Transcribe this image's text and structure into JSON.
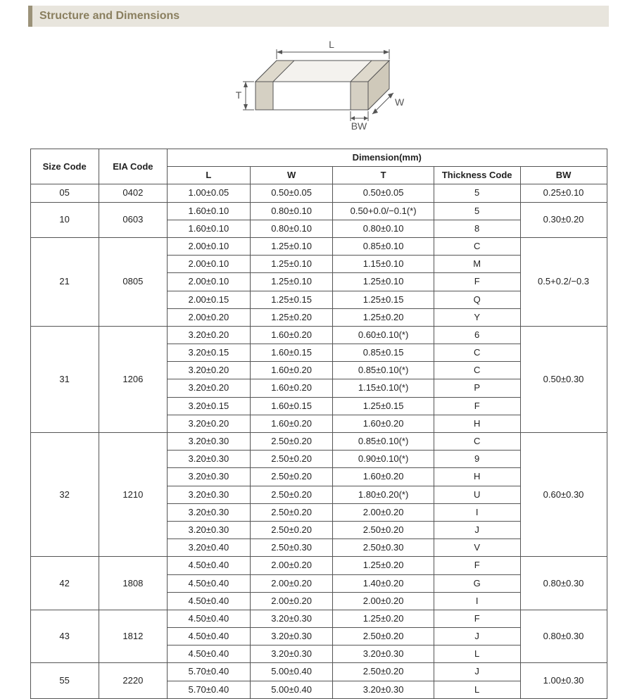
{
  "header": {
    "title": "Structure and Dimensions"
  },
  "diagram": {
    "labels": {
      "L": "L",
      "W": "W",
      "T": "T",
      "BW": "BW"
    },
    "stroke": "#555555",
    "fill_top": "#f4f2ee",
    "fill_side": "#e5e2da",
    "fill_band": "#d5d0c3"
  },
  "table": {
    "dimension_header": "Dimension(mm)",
    "columns": {
      "size": "Size Code",
      "eia": "EIA Code",
      "L": "L",
      "W": "W",
      "T": "T",
      "tc": "Thickness  Code",
      "bw": "BW"
    },
    "groups": [
      {
        "size": "05",
        "eia": "0402",
        "bw": "0.25±0.10",
        "rows": [
          {
            "L": "1.00±0.05",
            "W": "0.50±0.05",
            "T": "0.50±0.05",
            "tc": "5"
          }
        ]
      },
      {
        "size": "10",
        "eia": "0603",
        "bw": "0.30±0.20",
        "rows": [
          {
            "L": "1.60±0.10",
            "W": "0.80±0.10",
            "T": "0.50+0.0/−0.1(*)",
            "tc": "5"
          },
          {
            "L": "1.60±0.10",
            "W": "0.80±0.10",
            "T": "0.80±0.10",
            "tc": "8"
          }
        ]
      },
      {
        "size": "21",
        "eia": "0805",
        "bw": "0.5+0.2/−0.3",
        "rows": [
          {
            "L": "2.00±0.10",
            "W": "1.25±0.10",
            "T": "0.85±0.10",
            "tc": "C"
          },
          {
            "L": "2.00±0.10",
            "W": "1.25±0.10",
            "T": "1.15±0.10",
            "tc": "M"
          },
          {
            "L": "2.00±0.10",
            "W": "1.25±0.10",
            "T": "1.25±0.10",
            "tc": "F"
          },
          {
            "L": "2.00±0.15",
            "W": "1.25±0.15",
            "T": "1.25±0.15",
            "tc": "Q"
          },
          {
            "L": "2.00±0.20",
            "W": "1.25±0.20",
            "T": "1.25±0.20",
            "tc": "Y"
          }
        ]
      },
      {
        "size": "31",
        "eia": "1206",
        "bw": "0.50±0.30",
        "rows": [
          {
            "L": "3.20±0.20",
            "W": "1.60±0.20",
            "T": "0.60±0.10(*)",
            "tc": "6"
          },
          {
            "L": "3.20±0.15",
            "W": "1.60±0.15",
            "T": "0.85±0.15",
            "tc": "C"
          },
          {
            "L": "3.20±0.20",
            "W": "1.60±0.20",
            "T": "0.85±0.10(*)",
            "tc": "C"
          },
          {
            "L": "3.20±0.20",
            "W": "1.60±0.20",
            "T": "1.15±0.10(*)",
            "tc": "P"
          },
          {
            "L": "3.20±0.15",
            "W": "1.60±0.15",
            "T": "1.25±0.15",
            "tc": "F"
          },
          {
            "L": "3.20±0.20",
            "W": "1.60±0.20",
            "T": "1.60±0.20",
            "tc": "H"
          }
        ]
      },
      {
        "size": "32",
        "eia": "1210",
        "bw": "0.60±0.30",
        "rows": [
          {
            "L": "3.20±0.30",
            "W": "2.50±0.20",
            "T": "0.85±0.10(*)",
            "tc": "C"
          },
          {
            "L": "3.20±0.30",
            "W": "2.50±0.20",
            "T": "0.90±0.10(*)",
            "tc": "9"
          },
          {
            "L": "3.20±0.30",
            "W": "2.50±0.20",
            "T": "1.60±0.20",
            "tc": "H"
          },
          {
            "L": "3.20±0.30",
            "W": "2.50±0.20",
            "T": "1.80±0.20(*)",
            "tc": "U"
          },
          {
            "L": "3.20±0.30",
            "W": "2.50±0.20",
            "T": "2.00±0.20",
            "tc": "I"
          },
          {
            "L": "3.20±0.30",
            "W": "2.50±0.20",
            "T": "2.50±0.20",
            "tc": "J"
          },
          {
            "L": "3.20±0.40",
            "W": "2.50±0.30",
            "T": "2.50±0.30",
            "tc": "V"
          }
        ]
      },
      {
        "size": "42",
        "eia": "1808",
        "bw": "0.80±0.30",
        "rows": [
          {
            "L": "4.50±0.40",
            "W": "2.00±0.20",
            "T": "1.25±0.20",
            "tc": "F"
          },
          {
            "L": "4.50±0.40",
            "W": "2.00±0.20",
            "T": "1.40±0.20",
            "tc": "G"
          },
          {
            "L": "4.50±0.40",
            "W": "2.00±0.20",
            "T": "2.00±0.20",
            "tc": "I"
          }
        ]
      },
      {
        "size": "43",
        "eia": "1812",
        "bw": "0.80±0.30",
        "rows": [
          {
            "L": "4.50±0.40",
            "W": "3.20±0.30",
            "T": "1.25±0.20",
            "tc": "F"
          },
          {
            "L": "4.50±0.40",
            "W": "3.20±0.30",
            "T": "2.50±0.20",
            "tc": "J"
          },
          {
            "L": "4.50±0.40",
            "W": "3.20±0.30",
            "T": "3.20±0.30",
            "tc": "L"
          }
        ]
      },
      {
        "size": "55",
        "eia": "2220",
        "bw": "1.00±0.30",
        "rows": [
          {
            "L": "5.70±0.40",
            "W": "5.00±0.40",
            "T": "2.50±0.20",
            "tc": "J"
          },
          {
            "L": "5.70±0.40",
            "W": "5.00±0.40",
            "T": "3.20±0.30",
            "tc": "L"
          }
        ]
      }
    ]
  }
}
